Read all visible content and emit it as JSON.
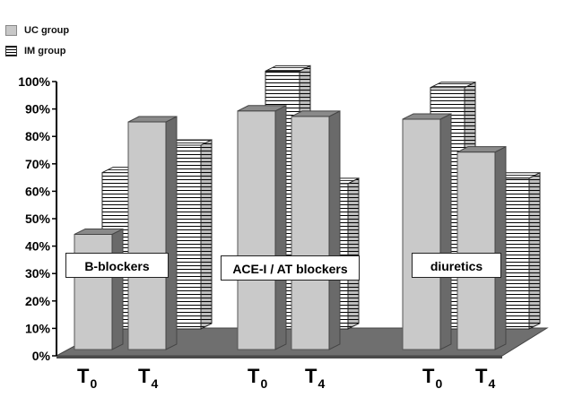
{
  "chart_data": {
    "type": "bar",
    "title": "",
    "xlabel": "",
    "ylabel": "",
    "ylim": [
      0,
      100
    ],
    "yticks": [
      "0%",
      "10%",
      "20%",
      "30%",
      "40%",
      "50%",
      "60%",
      "70%",
      "80%",
      "90%",
      "100%"
    ],
    "legend": {
      "placement": "top-left",
      "entries": [
        {
          "name": "UC group",
          "style": "solid-grey",
          "color": "#c8c8c8"
        },
        {
          "name": "IM group",
          "style": "horizontal-stripes",
          "color": "#ffffff"
        }
      ]
    },
    "groups": [
      "B-blockers",
      "ACE-I / AT blockers",
      "diuretics"
    ],
    "time_points": [
      {
        "main": "T",
        "sub": "0"
      },
      {
        "main": "T",
        "sub": "4"
      }
    ],
    "series": [
      {
        "name": "UC group",
        "group": "B-blockers",
        "values": {
          "T0": 42,
          "T4": 83
        }
      },
      {
        "name": "IM group",
        "group": "B-blockers",
        "values": {
          "T0": 57,
          "T4": 67
        }
      },
      {
        "name": "UC group",
        "group": "ACE-I / AT blockers",
        "values": {
          "T0": 87,
          "T4": 85
        }
      },
      {
        "name": "IM group",
        "group": "ACE-I / AT blockers",
        "values": {
          "T0": 94,
          "T4": 53
        }
      },
      {
        "name": "UC group",
        "group": "diuretics",
        "values": {
          "T0": 84,
          "T4": 72
        }
      },
      {
        "name": "IM group",
        "group": "diuretics",
        "values": {
          "T0": 88,
          "T4": 55
        }
      }
    ],
    "grid": false
  }
}
